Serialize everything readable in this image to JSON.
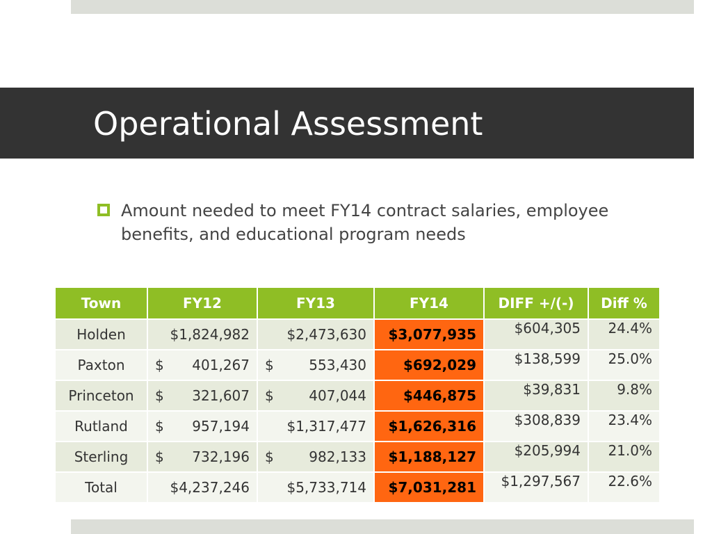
{
  "slide": {
    "title": "Operational Assessment",
    "bullet": "Amount needed to meet FY14 contract salaries, employee benefits, and educational program needs"
  },
  "table": {
    "headers": [
      "Town",
      "FY12",
      "FY13",
      "FY14",
      "DIFF +/(-)",
      "Diff %"
    ],
    "rows": [
      {
        "town": "Holden",
        "fy12": "$1,824,982",
        "fy13": "$2,473,630",
        "fy14": "$3,077,935",
        "diff": "$604,305",
        "pct": "24.4%"
      },
      {
        "town": "Paxton",
        "fy12": "$   401,267",
        "fy13": "$   553,430",
        "fy14": "$692,029",
        "diff": "$138,599",
        "pct": "25.0%"
      },
      {
        "town": "Princeton",
        "fy12": "$   321,607",
        "fy13": "$   407,044",
        "fy14": "$446,875",
        "diff": "$39,831",
        "pct": "9.8%"
      },
      {
        "town": "Rutland",
        "fy12": "$   957,194",
        "fy13": "$1,317,477",
        "fy14": "$1,626,316",
        "diff": "$308,839",
        "pct": "23.4%"
      },
      {
        "town": "Sterling",
        "fy12": "$   732,196",
        "fy13": "$   982,133",
        "fy14": "$1,188,127",
        "diff": "$205,994",
        "pct": "21.0%"
      },
      {
        "town": "Total",
        "fy12": "$4,237,246",
        "fy13": "$5,733,714",
        "fy14": "$7,031,281",
        "diff": "$1,297,567",
        "pct": "22.6%"
      }
    ]
  },
  "colors": {
    "title_bar": "#333333",
    "accent_green": "#8fbe25",
    "highlight_orange": "#ff6611",
    "band": "#dcded8"
  }
}
